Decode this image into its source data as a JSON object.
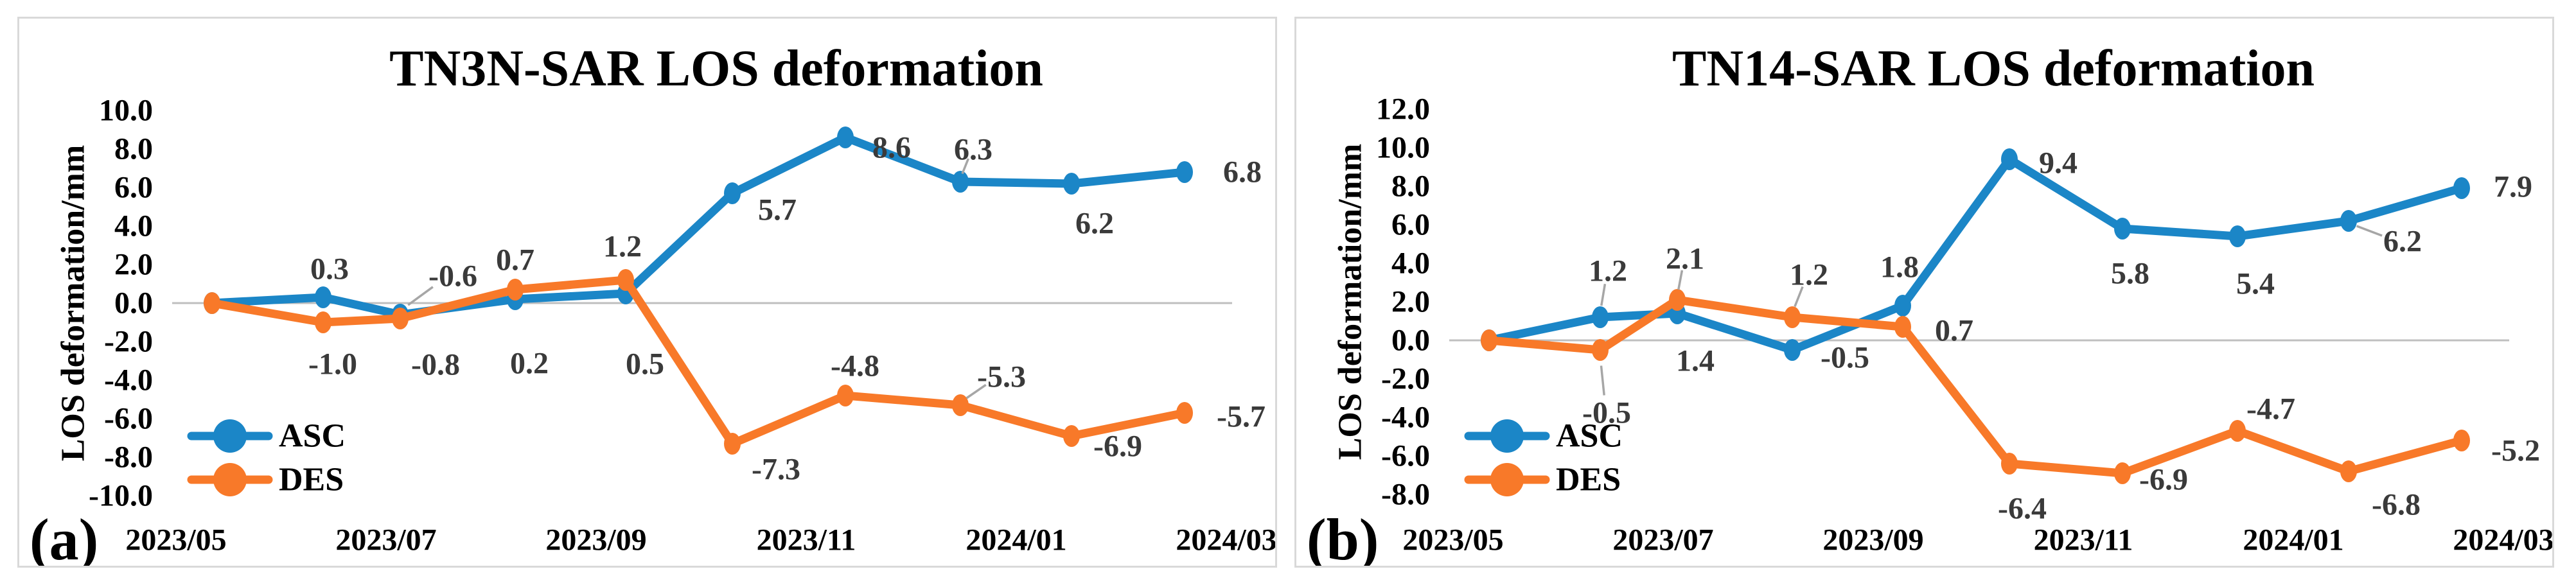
{
  "figure_type": "dual-panel line chart figure",
  "style": {
    "asc_color": "#1B86C7",
    "des_color": "#F87929",
    "zero_gridline_color": "#BFBFBF",
    "leader_line_color": "#A6A6A6",
    "data_label_color": "#3A3A3A",
    "axis_text_color": "#000000",
    "panel_border_color": "#D9D9D9",
    "background_color": "#FFFFFF"
  },
  "chart_data": [
    {
      "type": "line",
      "panel_label": "(a)",
      "title": "TN3N-SAR LOS deformation",
      "ylabel": "LOS deformation/mm",
      "xlabel": "",
      "ylim": [
        -10,
        10
      ],
      "ytick_step": 2,
      "ytick_format": "one-decimal",
      "grid": "zero-line only",
      "legend_position": "inside lower-left",
      "x_ticks": [
        "2023/05",
        "2023/07",
        "2023/09",
        "2023/11",
        "2024/01",
        "2024/03"
      ],
      "series": [
        {
          "name": "ASC",
          "color": "#1B86C7",
          "values": [
            0.0,
            0.3,
            -0.6,
            0.2,
            0.5,
            5.7,
            8.6,
            6.3,
            6.2,
            6.8
          ]
        },
        {
          "name": "DES",
          "color": "#F87929",
          "values": [
            0.0,
            -1.0,
            -0.8,
            0.7,
            1.2,
            -7.3,
            -4.8,
            -5.3,
            -6.9,
            -5.7
          ]
        }
      ],
      "data_labels_shown": {
        "ASC": [
          null,
          "0.3",
          "-0.6",
          "0.2",
          "0.5",
          "5.7",
          "8.6",
          "6.3",
          "6.2",
          "6.8"
        ],
        "DES": [
          null,
          "-1.0",
          "-0.8",
          "0.7",
          "1.2",
          "-7.3",
          "-4.8",
          "-5.3",
          "-6.9",
          "-5.7"
        ]
      }
    },
    {
      "type": "line",
      "panel_label": "(b)",
      "title": "TN14-SAR LOS deformation",
      "ylabel": "LOS deformation/mm",
      "xlabel": "",
      "ylim": [
        -8,
        12
      ],
      "ytick_step": 2,
      "ytick_format": "one-decimal",
      "grid": "zero-line only",
      "legend_position": "inside lower-left",
      "x_ticks": [
        "2023/05",
        "2023/07",
        "2023/09",
        "2023/11",
        "2024/01",
        "2024/03"
      ],
      "series": [
        {
          "name": "ASC",
          "color": "#1B86C7",
          "values": [
            0.0,
            1.2,
            1.4,
            -0.5,
            1.8,
            9.4,
            5.8,
            5.4,
            6.2,
            7.9
          ]
        },
        {
          "name": "DES",
          "color": "#F87929",
          "values": [
            0.0,
            -0.5,
            2.1,
            1.2,
            0.7,
            -6.4,
            -6.9,
            -4.7,
            -6.8,
            -5.2
          ]
        }
      ],
      "data_labels_shown": {
        "ASC": [
          null,
          "1.2",
          "1.4",
          "-0.5",
          "1.8",
          "9.4",
          "5.8",
          "5.4",
          "6.2",
          "7.9"
        ],
        "DES": [
          null,
          "-0.5",
          "2.1",
          "1.2",
          "0.7",
          "-6.4",
          "-6.9",
          "-4.7",
          "-6.8",
          "-5.2"
        ]
      }
    }
  ]
}
